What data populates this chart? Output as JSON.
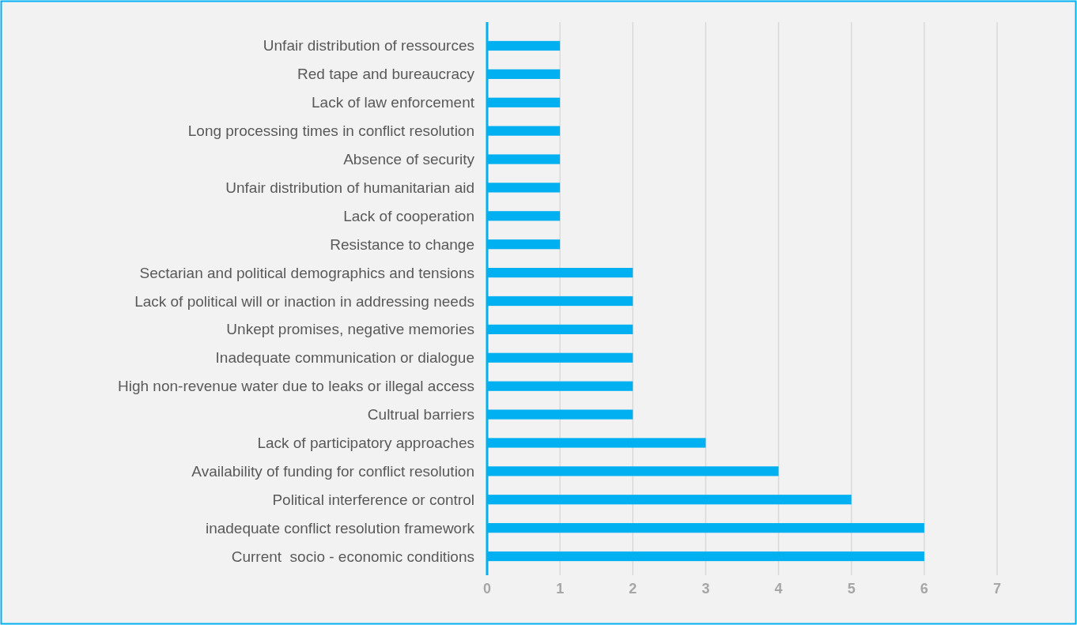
{
  "chart_data": {
    "type": "bar",
    "orientation": "horizontal",
    "categories": [
      "Unfair distribution of ressources",
      "Red tape and bureaucracy",
      "Lack of law enforcement",
      "Long processing times in conflict resolution",
      "Absence of security",
      "Unfair distribution of humanitarian aid",
      "Lack of cooperation",
      "Resistance to change",
      "Sectarian and political demographics and tensions",
      "Lack of political will or inaction in addressing needs",
      "Unkept promises, negative memories",
      "Inadequate communication or dialogue",
      "High non-revenue water due to leaks or illegal access",
      "Cultrual barriers",
      "Lack of participatory approaches",
      "Availability of funding for conflict resolution",
      "Political interference or control",
      "inadequate conflict resolution framework",
      "Current  socio - economic conditions"
    ],
    "values": [
      1,
      1,
      1,
      1,
      1,
      1,
      1,
      1,
      2,
      2,
      2,
      2,
      2,
      2,
      3,
      4,
      5,
      6,
      6
    ],
    "color": "#00b0f0",
    "xlim": [
      0,
      7
    ],
    "xticks": [
      0,
      1,
      2,
      3,
      4,
      5,
      6,
      7
    ],
    "grid": "x"
  }
}
